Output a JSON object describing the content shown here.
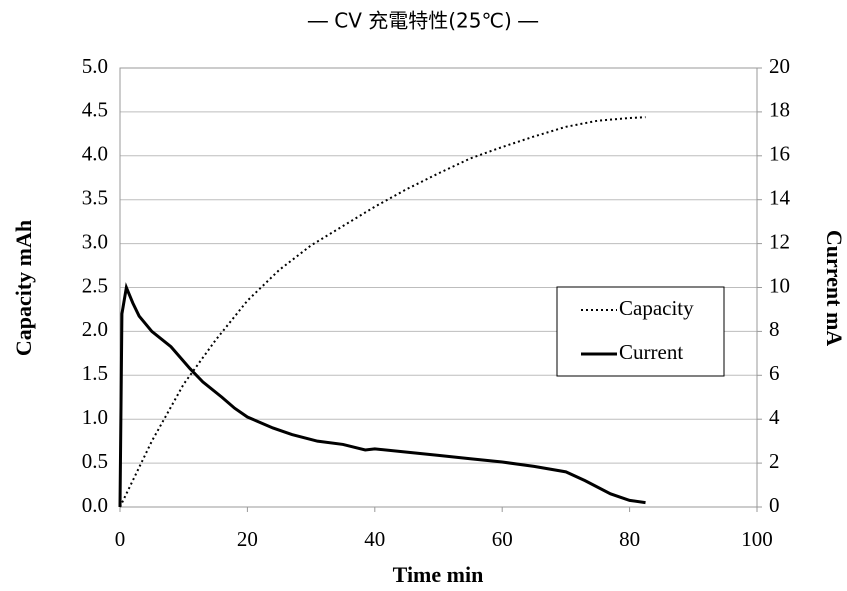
{
  "chart_data": {
    "type": "line",
    "title": "― CV 充電特性(25℃) ―",
    "x_label": "Time min",
    "y_label": "Capacity mAh",
    "y2_label": "Current  mA",
    "xlim": [
      0,
      100
    ],
    "xticks": [
      0,
      20,
      40,
      60,
      80,
      100
    ],
    "ylim": [
      0,
      5
    ],
    "yticks": [
      {
        "value": 0,
        "label": "0.0"
      },
      {
        "value": 0.5,
        "label": "0.5"
      },
      {
        "value": 1,
        "label": "1.0"
      },
      {
        "value": 1.5,
        "label": "1.5"
      },
      {
        "value": 2,
        "label": "2.0"
      },
      {
        "value": 2.5,
        "label": "2.5"
      },
      {
        "value": 3,
        "label": "3.0"
      },
      {
        "value": 3.5,
        "label": "3.5"
      },
      {
        "value": 4,
        "label": "4.0"
      },
      {
        "value": 4.5,
        "label": "4.5"
      },
      {
        "value": 5,
        "label": "5.0"
      }
    ],
    "y2lim": [
      0,
      20
    ],
    "y2ticks": [
      0,
      2,
      4,
      6,
      8,
      10,
      12,
      14,
      16,
      18,
      20
    ],
    "grid": true,
    "legend_position": "right",
    "series": [
      {
        "name": "Capacity",
        "color": "#000000",
        "dash": "dotted",
        "x": [
          0,
          2,
          5,
          10,
          15,
          20,
          25,
          30,
          35,
          40,
          45,
          50,
          55,
          60,
          65,
          70,
          75,
          80,
          82.5
        ],
        "values": [
          0,
          0.3,
          0.75,
          1.4,
          1.9,
          2.35,
          2.7,
          2.98,
          3.2,
          3.42,
          3.62,
          3.8,
          3.97,
          4.1,
          4.22,
          4.33,
          4.4,
          4.43,
          4.44
        ]
      },
      {
        "name": "Current",
        "color": "#000000",
        "dash": "solid",
        "axis": "y2",
        "x": [
          0,
          0.3,
          1,
          2,
          3,
          5,
          8,
          11,
          13,
          16,
          18,
          20,
          24,
          27,
          31,
          35,
          38.5,
          40,
          45,
          50,
          55,
          60,
          65,
          70,
          73,
          77,
          80,
          82.5
        ],
        "values": [
          0,
          8.8,
          10,
          9.3,
          8.7,
          8,
          7.3,
          6.3,
          5.7,
          5,
          4.5,
          4.1,
          3.6,
          3.3,
          3,
          2.85,
          2.6,
          2.65,
          2.5,
          2.35,
          2.2,
          2.05,
          1.85,
          1.6,
          1.2,
          0.6,
          0.3,
          0.2
        ]
      }
    ]
  }
}
